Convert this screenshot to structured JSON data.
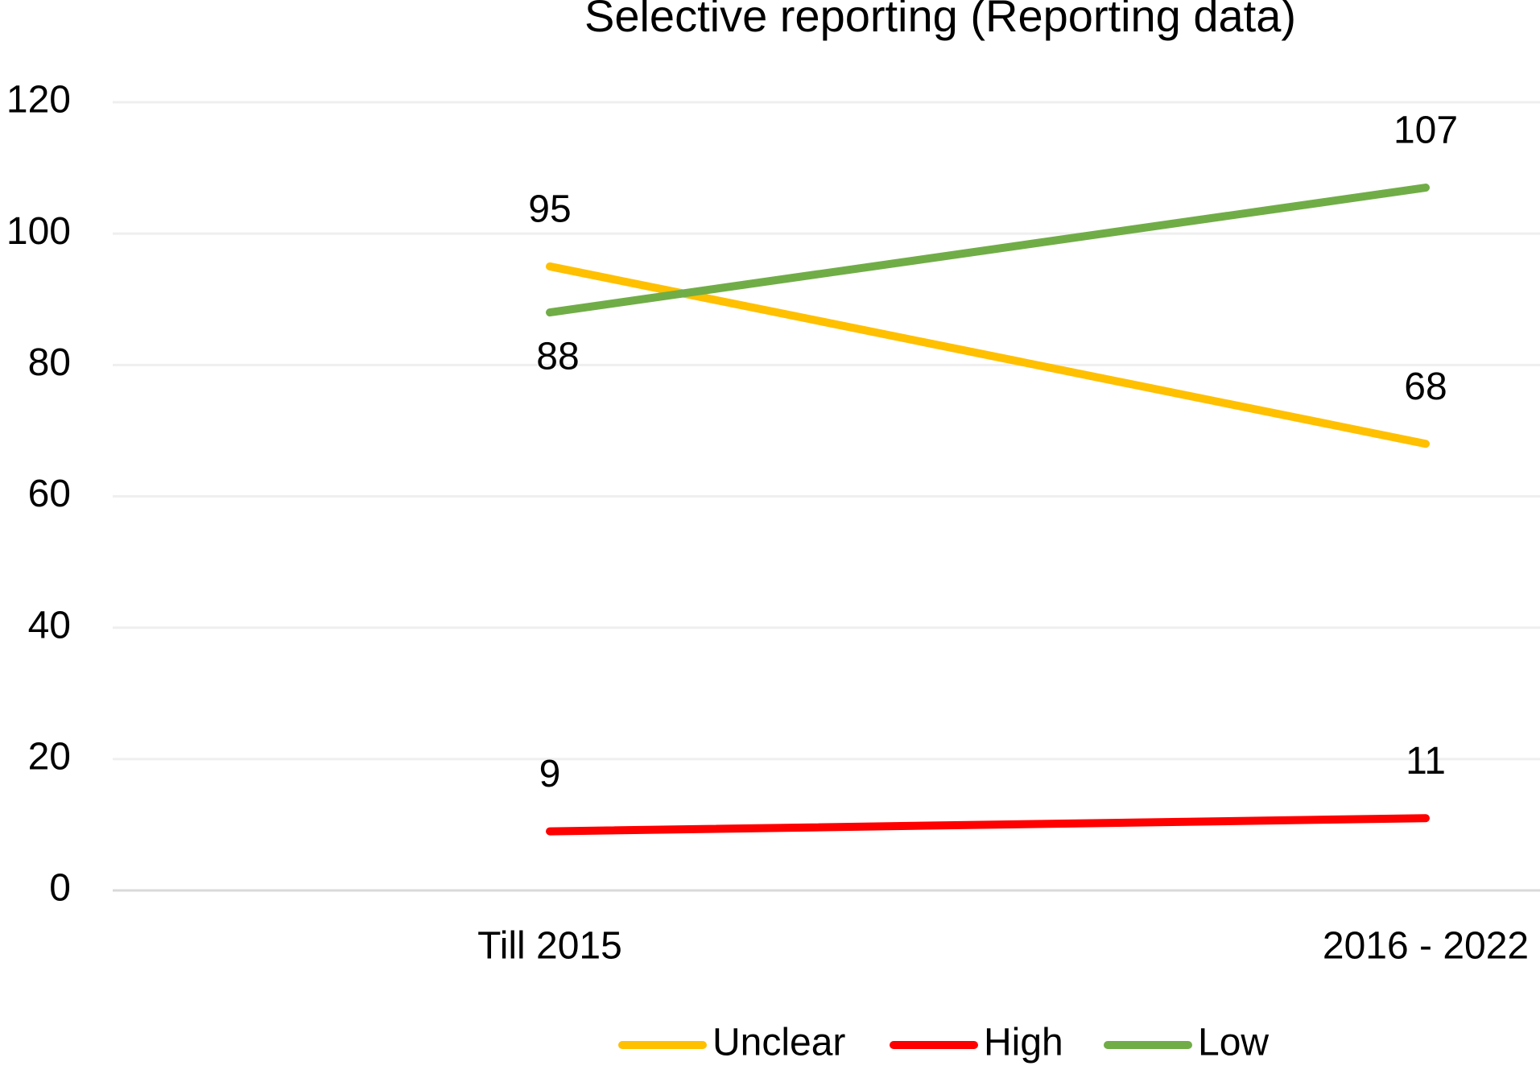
{
  "chart_data": {
    "type": "line",
    "title": "Selective reporting (Reporting data)",
    "categories": [
      "Till 2015",
      "2016 - 2022"
    ],
    "series": [
      {
        "name": "Unclear",
        "color": "#FFC000",
        "values": [
          95,
          68
        ]
      },
      {
        "name": "High",
        "color": "#FF0000",
        "values": [
          9,
          11
        ]
      },
      {
        "name": "Low",
        "color": "#70AD47",
        "values": [
          88,
          107
        ]
      }
    ],
    "ylim": [
      0,
      120
    ],
    "yticks": [
      0,
      20,
      40,
      60,
      80,
      100,
      120
    ],
    "grid": true,
    "legend": "bottom"
  }
}
